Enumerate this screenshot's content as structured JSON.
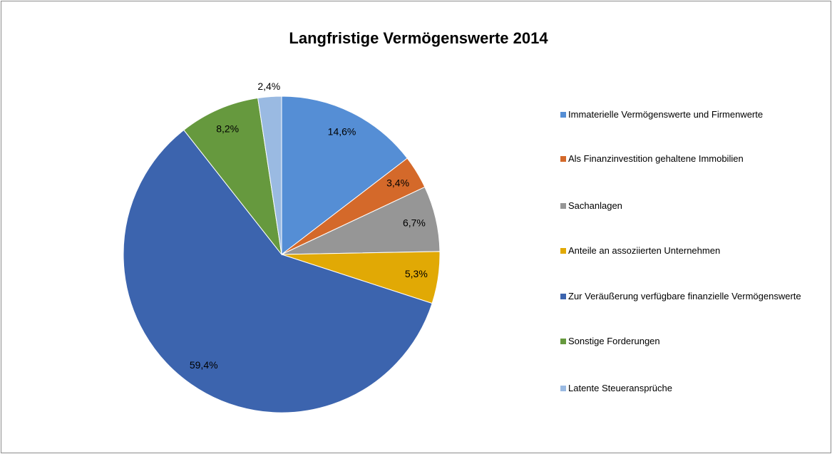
{
  "chart_data": {
    "type": "pie",
    "title": "Langfristige Vermögenswerte 2014",
    "categories": [
      "Immaterielle Vermögenswerte und Firmenwerte",
      "Als Finanzinvestition gehaltene Immobilien",
      "Sachanlagen",
      "Anteile an assoziierten Unternehmen",
      "Zur Veräußerung verfügbare finanzielle Vermögenswerte",
      "Sonstige Forderungen",
      "Latente Steueransprüche"
    ],
    "values": [
      14.6,
      3.4,
      6.7,
      5.3,
      59.4,
      8.2,
      2.4
    ],
    "value_labels": [
      "14,6%",
      "3,4%",
      "6,7%",
      "5,3%",
      "59,4%",
      "8,2%",
      "2,4%"
    ],
    "colors": [
      "#558ed5",
      "#d4692a",
      "#969696",
      "#e1a905",
      "#3c64ae",
      "#66993e",
      "#9abae2"
    ],
    "legend": "right"
  }
}
